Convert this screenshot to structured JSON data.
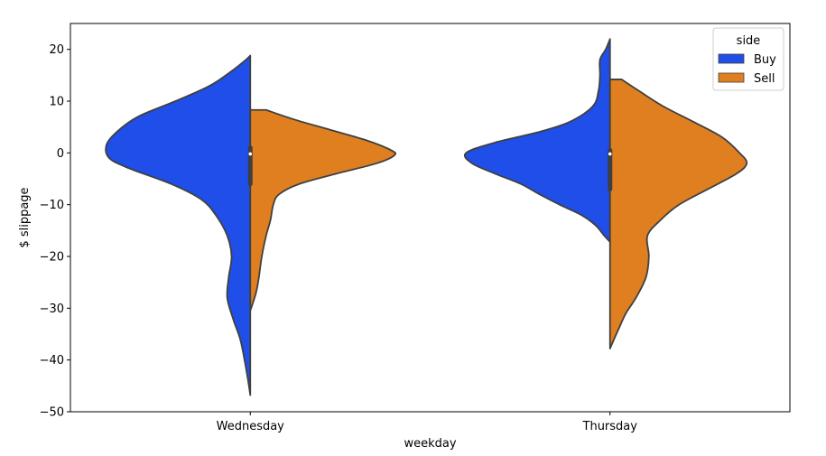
{
  "chart_data": {
    "type": "violin",
    "split": true,
    "xlabel": "weekday",
    "ylabel": "$ slippage",
    "ylim": [
      -50,
      25
    ],
    "yticks": [
      20,
      10,
      0,
      -10,
      -20,
      -30,
      -40,
      -50
    ],
    "ytick_labels": [
      "20",
      "10",
      "0",
      "−10",
      "−20",
      "−30",
      "−40",
      "−50"
    ],
    "categories": [
      "Wednesday",
      "Thursday"
    ],
    "legend": {
      "title": "side",
      "placement": "top-right",
      "entries": [
        "Buy",
        "Sell"
      ]
    },
    "series": [
      {
        "name": "Buy",
        "color": "#1f4fe8",
        "violins": [
          {
            "category": "Wednesday",
            "min": -46.8,
            "max": 18.8,
            "density": [
              [
                18.8,
                0.0
              ],
              [
                18.0,
                0.03
              ],
              [
                16.0,
                0.12
              ],
              [
                13.0,
                0.28
              ],
              [
                10.0,
                0.52
              ],
              [
                7.0,
                0.78
              ],
              [
                4.0,
                0.93
              ],
              [
                1.5,
                1.0
              ],
              [
                -1.0,
                0.98
              ],
              [
                -3.0,
                0.84
              ],
              [
                -6.0,
                0.55
              ],
              [
                -9.0,
                0.34
              ],
              [
                -12.0,
                0.24
              ],
              [
                -16.0,
                0.16
              ],
              [
                -20.0,
                0.13
              ],
              [
                -24.0,
                0.15
              ],
              [
                -28.0,
                0.16
              ],
              [
                -32.0,
                0.12
              ],
              [
                -36.0,
                0.07
              ],
              [
                -40.0,
                0.04
              ],
              [
                -44.0,
                0.015
              ],
              [
                -46.8,
                0.0
              ]
            ]
          },
          {
            "category": "Thursday",
            "min": -17.2,
            "max": 22.0,
            "density": [
              [
                22.0,
                0.0
              ],
              [
                20.0,
                0.03
              ],
              [
                18.0,
                0.07
              ],
              [
                15.0,
                0.07
              ],
              [
                12.0,
                0.08
              ],
              [
                9.0,
                0.12
              ],
              [
                6.0,
                0.28
              ],
              [
                4.0,
                0.5
              ],
              [
                2.0,
                0.8
              ],
              [
                0.0,
                1.0
              ],
              [
                -2.0,
                0.96
              ],
              [
                -4.0,
                0.8
              ],
              [
                -6.0,
                0.62
              ],
              [
                -8.0,
                0.49
              ],
              [
                -10.0,
                0.35
              ],
              [
                -12.0,
                0.2
              ],
              [
                -14.0,
                0.1
              ],
              [
                -16.0,
                0.04
              ],
              [
                -17.2,
                0.0
              ]
            ]
          }
        ]
      },
      {
        "name": "Sell",
        "color": "#e07f1f",
        "violins": [
          {
            "category": "Wednesday",
            "min": -30.5,
            "max": 8.3,
            "density": [
              [
                8.3,
                0.11
              ],
              [
                6.5,
                0.3
              ],
              [
                4.5,
                0.55
              ],
              [
                2.5,
                0.8
              ],
              [
                0.5,
                0.98
              ],
              [
                -0.5,
                1.0
              ],
              [
                -2.0,
                0.88
              ],
              [
                -4.0,
                0.6
              ],
              [
                -6.0,
                0.34
              ],
              [
                -8.0,
                0.2
              ],
              [
                -10.0,
                0.16
              ],
              [
                -13.0,
                0.14
              ],
              [
                -16.0,
                0.11
              ],
              [
                -20.0,
                0.08
              ],
              [
                -24.0,
                0.06
              ],
              [
                -27.0,
                0.04
              ],
              [
                -30.5,
                0.0
              ]
            ]
          },
          {
            "category": "Thursday",
            "min": -37.8,
            "max": 14.2,
            "density": [
              [
                14.2,
                0.08
              ],
              [
                12.0,
                0.2
              ],
              [
                9.0,
                0.37
              ],
              [
                6.0,
                0.58
              ],
              [
                3.0,
                0.78
              ],
              [
                0.0,
                0.9
              ],
              [
                -2.0,
                0.95
              ],
              [
                -4.0,
                0.88
              ],
              [
                -7.0,
                0.68
              ],
              [
                -10.0,
                0.48
              ],
              [
                -13.0,
                0.35
              ],
              [
                -16.0,
                0.26
              ],
              [
                -20.0,
                0.27
              ],
              [
                -24.0,
                0.25
              ],
              [
                -28.0,
                0.18
              ],
              [
                -31.0,
                0.11
              ],
              [
                -34.0,
                0.06
              ],
              [
                -36.5,
                0.02
              ],
              [
                -37.8,
                0.0
              ]
            ]
          }
        ]
      }
    ],
    "inner_boxes": [
      {
        "category": "Wednesday",
        "q1": -6.0,
        "median": -0.2,
        "q3": 1.0
      },
      {
        "category": "Thursday",
        "q1": -7.0,
        "median": -0.2,
        "q3": 0.5
      }
    ]
  }
}
